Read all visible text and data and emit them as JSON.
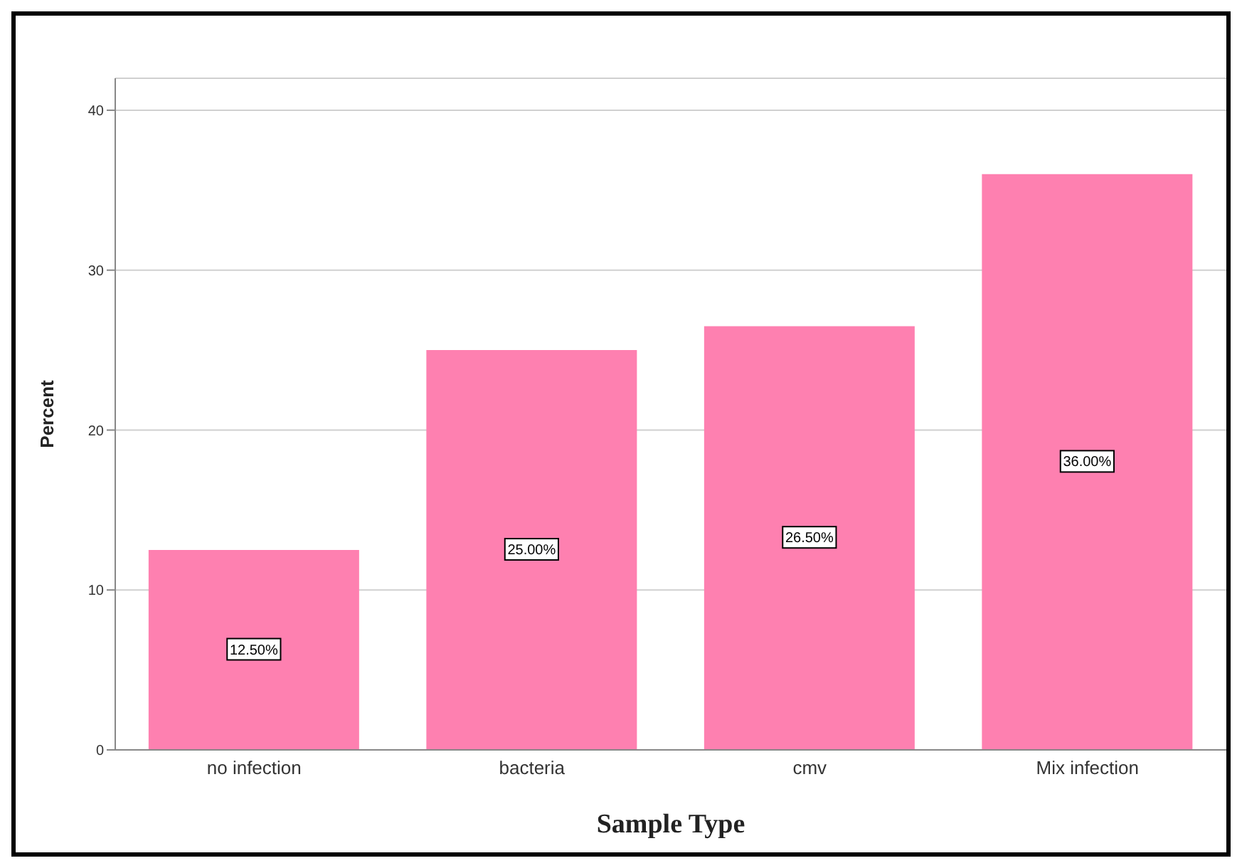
{
  "chart_data": {
    "type": "bar",
    "xlabel": "Sample Type",
    "ylabel": "Percent",
    "categories": [
      "no infection",
      "bacteria",
      "cmv",
      "Mix infection"
    ],
    "values": [
      12.5,
      25,
      26.5,
      36
    ],
    "color": "#fe80b0",
    "value_labels": [
      "12.50%",
      "25.00%",
      "26.50%",
      "36.00%"
    ],
    "ylim": [
      0,
      42
    ],
    "yticks": [
      0,
      10,
      20,
      30,
      40
    ],
    "grid": "y"
  }
}
